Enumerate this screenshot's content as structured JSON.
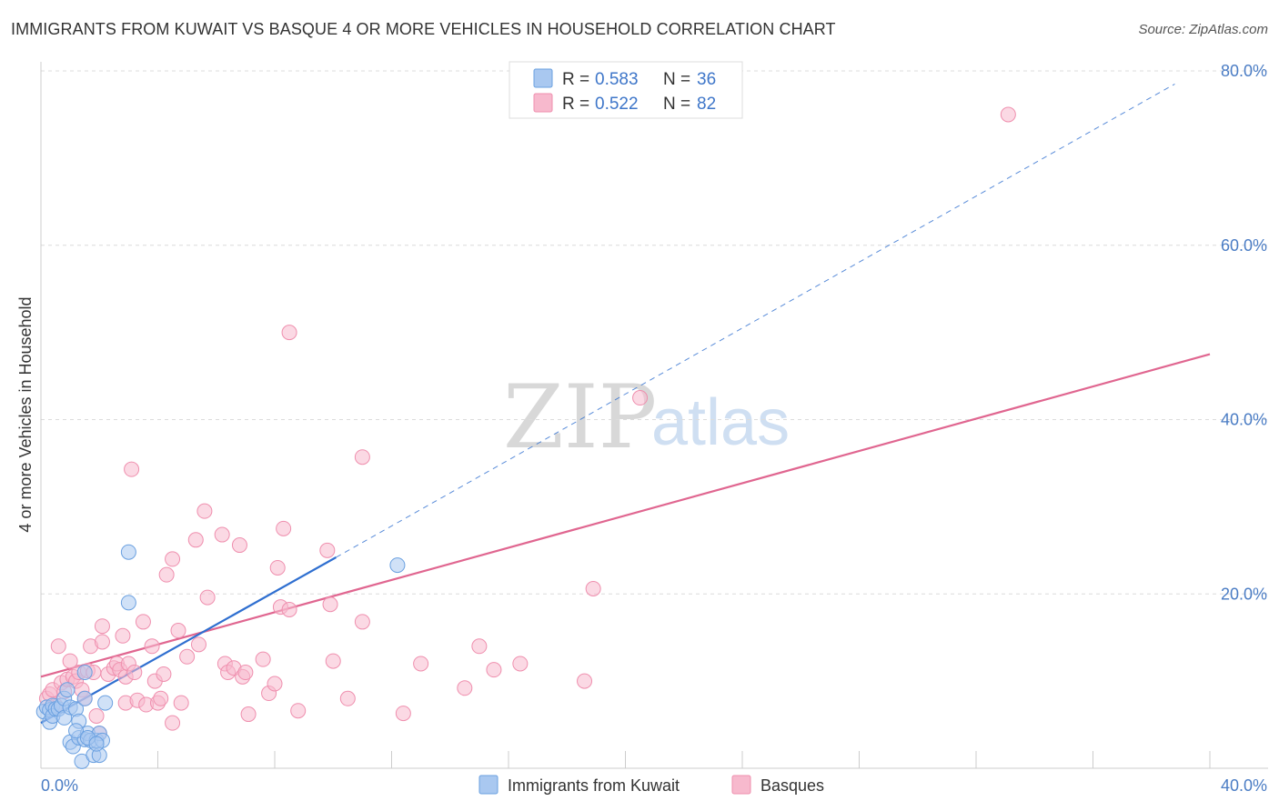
{
  "header": {
    "title": "IMMIGRANTS FROM KUWAIT VS BASQUE 4 OR MORE VEHICLES IN HOUSEHOLD CORRELATION CHART",
    "source": "Source: ZipAtlas.com"
  },
  "watermark": {
    "zip": "ZIP",
    "atlas": "atlas"
  },
  "stats": [
    {
      "r_label": "R =",
      "r_value": "0.583",
      "n_label": "N =",
      "n_value": "36",
      "color": "#a9c8f0"
    },
    {
      "r_label": "R =",
      "r_value": "0.522",
      "n_label": "N =",
      "n_value": "82",
      "color": "#f7b9cd"
    }
  ],
  "chart_data": {
    "type": "scatter",
    "title": "IMMIGRANTS FROM KUWAIT VS BASQUE 4 OR MORE VEHICLES IN HOUSEHOLD CORRELATION CHART",
    "xlabel": "",
    "ylabel": "4 or more Vehicles in Household",
    "xlim": [
      0,
      40
    ],
    "ylim": [
      0,
      80
    ],
    "x_tick_labels": [
      "0.0%",
      "40.0%"
    ],
    "y_ticks": [
      20,
      40,
      60,
      80
    ],
    "y_tick_labels": [
      "20.0%",
      "40.0%",
      "60.0%",
      "80.0%"
    ],
    "grid": true,
    "legend_position": "bottom",
    "series": [
      {
        "name": "Immigrants from Kuwait",
        "color": "#6aa0e0",
        "fill": "#a9c8f0",
        "trend": {
          "x0": 0,
          "y0": 5.2,
          "x1": 10.1,
          "y1": 24.2,
          "dashed_to_x": 38.8,
          "dashed_to_y": 78.5,
          "color": "#2f6fd0"
        },
        "points": [
          [
            0.1,
            6.5
          ],
          [
            0.2,
            7.0
          ],
          [
            0.3,
            5.3
          ],
          [
            0.3,
            6.7
          ],
          [
            0.4,
            7.2
          ],
          [
            0.4,
            6.0
          ],
          [
            0.5,
            6.8
          ],
          [
            0.6,
            6.8
          ],
          [
            0.7,
            7.2
          ],
          [
            0.8,
            5.8
          ],
          [
            0.8,
            8.0
          ],
          [
            0.9,
            9.0
          ],
          [
            1.0,
            3.0
          ],
          [
            1.0,
            7.0
          ],
          [
            1.1,
            2.5
          ],
          [
            1.2,
            6.8
          ],
          [
            1.3,
            5.4
          ],
          [
            1.3,
            3.5
          ],
          [
            1.4,
            0.8
          ],
          [
            1.5,
            3.3
          ],
          [
            1.6,
            4.0
          ],
          [
            1.7,
            3.2
          ],
          [
            1.8,
            1.5
          ],
          [
            1.9,
            3.2
          ],
          [
            1.5,
            8.0
          ],
          [
            1.5,
            11.0
          ],
          [
            2.0,
            1.5
          ],
          [
            2.2,
            7.5
          ],
          [
            2.0,
            4.0
          ],
          [
            1.2,
            4.3
          ],
          [
            2.1,
            3.2
          ],
          [
            1.6,
            3.5
          ],
          [
            1.9,
            2.8
          ],
          [
            3.0,
            19.0
          ],
          [
            3.0,
            24.8
          ],
          [
            12.2,
            23.3
          ]
        ]
      },
      {
        "name": "Basques",
        "color": "#ef8fae",
        "fill": "#f7b9cd",
        "trend": {
          "x0": 0,
          "y0": 10.5,
          "x1": 40,
          "y1": 47.5,
          "color": "#e06690"
        },
        "points": [
          [
            0.2,
            8.0
          ],
          [
            0.3,
            8.5
          ],
          [
            0.4,
            9.0
          ],
          [
            0.5,
            7.2
          ],
          [
            0.6,
            14.0
          ],
          [
            0.7,
            9.8
          ],
          [
            0.8,
            8.8
          ],
          [
            0.9,
            10.2
          ],
          [
            1.0,
            12.3
          ],
          [
            1.1,
            10.5
          ],
          [
            1.2,
            10.0
          ],
          [
            1.3,
            11.0
          ],
          [
            1.4,
            9.0
          ],
          [
            1.5,
            8.0
          ],
          [
            1.6,
            11.2
          ],
          [
            1.7,
            14.0
          ],
          [
            1.8,
            11.0
          ],
          [
            1.9,
            6.0
          ],
          [
            2.0,
            4.0
          ],
          [
            2.1,
            14.5
          ],
          [
            2.1,
            16.3
          ],
          [
            2.3,
            10.8
          ],
          [
            2.5,
            11.5
          ],
          [
            2.6,
            12.0
          ],
          [
            2.7,
            11.3
          ],
          [
            2.8,
            15.2
          ],
          [
            2.9,
            7.5
          ],
          [
            2.9,
            10.5
          ],
          [
            3.0,
            12.0
          ],
          [
            3.1,
            34.3
          ],
          [
            3.2,
            11.0
          ],
          [
            3.3,
            7.8
          ],
          [
            3.5,
            16.8
          ],
          [
            3.6,
            7.3
          ],
          [
            3.8,
            14.0
          ],
          [
            3.9,
            10.0
          ],
          [
            4.0,
            7.5
          ],
          [
            4.1,
            8.0
          ],
          [
            4.2,
            10.8
          ],
          [
            4.3,
            22.2
          ],
          [
            4.5,
            24.0
          ],
          [
            4.5,
            5.2
          ],
          [
            4.7,
            15.8
          ],
          [
            4.8,
            7.5
          ],
          [
            5.0,
            12.8
          ],
          [
            5.3,
            26.2
          ],
          [
            5.4,
            14.2
          ],
          [
            5.6,
            29.5
          ],
          [
            5.7,
            19.6
          ],
          [
            6.2,
            26.8
          ],
          [
            6.3,
            12.0
          ],
          [
            6.4,
            11.0
          ],
          [
            6.6,
            11.5
          ],
          [
            6.8,
            25.6
          ],
          [
            6.9,
            10.5
          ],
          [
            7.0,
            11.0
          ],
          [
            7.1,
            6.2
          ],
          [
            7.6,
            12.5
          ],
          [
            7.8,
            8.6
          ],
          [
            8.0,
            9.7
          ],
          [
            8.1,
            23.0
          ],
          [
            8.2,
            18.5
          ],
          [
            8.3,
            27.5
          ],
          [
            8.5,
            18.2
          ],
          [
            8.5,
            50.0
          ],
          [
            8.8,
            6.6
          ],
          [
            9.8,
            25.0
          ],
          [
            9.9,
            18.8
          ],
          [
            10.0,
            12.3
          ],
          [
            10.5,
            8.0
          ],
          [
            11.0,
            16.8
          ],
          [
            11.0,
            35.7
          ],
          [
            12.4,
            6.3
          ],
          [
            14.5,
            9.2
          ],
          [
            15.0,
            14.0
          ],
          [
            15.5,
            11.3
          ],
          [
            16.4,
            12.0
          ],
          [
            18.6,
            10.0
          ],
          [
            18.9,
            20.6
          ],
          [
            20.5,
            42.5
          ],
          [
            33.1,
            75.0
          ],
          [
            13.0,
            12.0
          ]
        ]
      }
    ]
  }
}
